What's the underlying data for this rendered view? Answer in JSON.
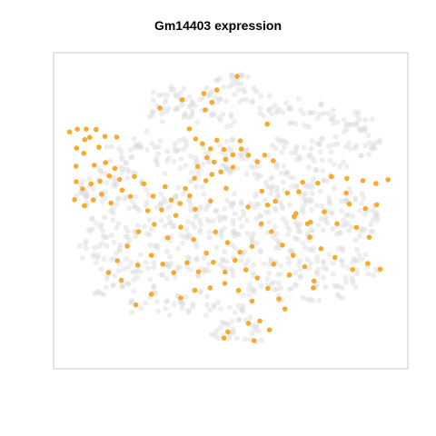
{
  "chart_data": {
    "type": "scatter",
    "title": "Gm14403 expression",
    "xlabel": "",
    "ylabel": "",
    "axes_visible": false,
    "frame": true,
    "xlim": [
      0,
      100
    ],
    "ylim": [
      0,
      100
    ],
    "colors": {
      "background_cells": "#d9d9d9",
      "expressing_cells": "#f5a623",
      "frame": "#c8c8c8"
    },
    "series": [
      {
        "name": "",
        "role": "background",
        "points": [
          [
            52.6,
            92.4
          ],
          [
            47.9,
            91.8
          ],
          [
            50.8,
            90.4
          ],
          [
            53.1,
            87.1
          ],
          [
            44.1,
            86.2
          ],
          [
            46.0,
            85.3
          ],
          [
            33.4,
            87.6
          ],
          [
            38.3,
            86.0
          ],
          [
            30.3,
            85.5
          ],
          [
            36.2,
            84.6
          ],
          [
            41.4,
            82.6
          ],
          [
            32.4,
            82.7
          ],
          [
            29.7,
            80.3
          ],
          [
            39.3,
            79.8
          ],
          [
            45.4,
            81.0
          ],
          [
            48.7,
            79.2
          ],
          [
            58.5,
            86.6
          ],
          [
            62.6,
            83.2
          ],
          [
            60.8,
            81.7
          ],
          [
            67.0,
            83.1
          ],
          [
            69.4,
            79.2
          ],
          [
            73.9,
            81.2
          ],
          [
            77.2,
            80.2
          ],
          [
            80.5,
            76.5
          ],
          [
            83.9,
            79.3
          ],
          [
            85.4,
            75.5
          ],
          [
            87.7,
            77.1
          ],
          [
            90.7,
            71.1
          ],
          [
            88.0,
            69.7
          ],
          [
            84.3,
            68.9
          ],
          [
            77.9,
            72.3
          ],
          [
            74.7,
            70.7
          ],
          [
            80.2,
            65.9
          ],
          [
            73.8,
            65.4
          ],
          [
            69.9,
            67.9
          ],
          [
            66.7,
            69.0
          ],
          [
            63.9,
            72.4
          ],
          [
            63.1,
            66.0
          ],
          [
            76.8,
            61.0
          ],
          [
            72.4,
            59.1
          ],
          [
            69.4,
            56.3
          ],
          [
            65.3,
            61.8
          ],
          [
            59.2,
            59.5
          ],
          [
            62.5,
            56.9
          ],
          [
            57.1,
            64.0
          ],
          [
            54.3,
            67.8
          ],
          [
            51.0,
            70.0
          ],
          [
            49.8,
            65.4
          ],
          [
            48.5,
            62.0
          ],
          [
            44.9,
            67.9
          ],
          [
            41.7,
            64.4
          ],
          [
            39.5,
            59.6
          ],
          [
            38.0,
            64.9
          ],
          [
            35.1,
            71.0
          ],
          [
            33.1,
            67.3
          ],
          [
            30.0,
            63.9
          ],
          [
            27.5,
            70.0
          ],
          [
            24.4,
            72.6
          ],
          [
            22.5,
            68.6
          ],
          [
            21.1,
            63.9
          ],
          [
            19.3,
            61.0
          ],
          [
            17.0,
            68.5
          ],
          [
            13.8,
            63.2
          ],
          [
            10.3,
            58.6
          ],
          [
            7.6,
            55.2
          ],
          [
            10.8,
            52.1
          ],
          [
            13.2,
            56.1
          ],
          [
            16.3,
            51.8
          ],
          [
            18.6,
            55.9
          ],
          [
            22.1,
            51.9
          ],
          [
            25.7,
            56.5
          ],
          [
            28.5,
            52.7
          ],
          [
            31.8,
            48.9
          ],
          [
            33.0,
            55.0
          ],
          [
            37.0,
            52.8
          ],
          [
            40.2,
            48.3
          ],
          [
            43.5,
            52.5
          ],
          [
            46.1,
            48.6
          ],
          [
            49.1,
            53.1
          ],
          [
            52.6,
            49.5
          ],
          [
            55.6,
            53.7
          ],
          [
            58.4,
            49.6
          ],
          [
            60.7,
            55.1
          ],
          [
            64.0,
            50.9
          ],
          [
            66.4,
            47.6
          ],
          [
            70.6,
            50.2
          ],
          [
            73.3,
            54.5
          ],
          [
            76.9,
            50.5
          ],
          [
            80.2,
            55.0
          ],
          [
            83.8,
            50.9
          ],
          [
            86.2,
            55.4
          ],
          [
            88.4,
            50.9
          ],
          [
            90.6,
            46.8
          ],
          [
            87.5,
            43.0
          ],
          [
            84.3,
            46.6
          ],
          [
            81.0,
            42.8
          ],
          [
            77.6,
            46.9
          ],
          [
            73.8,
            43.4
          ],
          [
            70.4,
            39.9
          ],
          [
            67.3,
            43.9
          ],
          [
            63.9,
            40.2
          ],
          [
            60.2,
            44.1
          ],
          [
            56.2,
            40.6
          ],
          [
            53.2,
            44.3
          ],
          [
            49.3,
            41.4
          ],
          [
            45.5,
            45.2
          ],
          [
            42.5,
            41.2
          ],
          [
            38.4,
            44.7
          ],
          [
            35.5,
            40.7
          ],
          [
            31.6,
            44.2
          ],
          [
            28.3,
            40.0
          ],
          [
            25.2,
            44.6
          ],
          [
            21.5,
            40.8
          ],
          [
            18.3,
            44.8
          ],
          [
            14.8,
            41.2
          ],
          [
            11.7,
            45.3
          ],
          [
            8.8,
            41.5
          ],
          [
            10.3,
            37.6
          ],
          [
            13.7,
            33.6
          ],
          [
            16.9,
            37.5
          ],
          [
            20.2,
            33.9
          ],
          [
            23.2,
            30.1
          ],
          [
            26.0,
            34.5
          ],
          [
            29.8,
            30.9
          ],
          [
            33.1,
            35.1
          ],
          [
            36.4,
            31.0
          ],
          [
            39.8,
            34.5
          ],
          [
            43.3,
            31.1
          ],
          [
            46.4,
            35.5
          ],
          [
            50.1,
            31.6
          ],
          [
            53.5,
            35.7
          ],
          [
            56.8,
            31.7
          ],
          [
            60.4,
            36.0
          ],
          [
            63.7,
            32.0
          ],
          [
            67.0,
            35.2
          ],
          [
            70.5,
            31.8
          ],
          [
            73.7,
            35.8
          ],
          [
            77.0,
            32.1
          ],
          [
            80.4,
            35.7
          ],
          [
            83.7,
            31.4
          ],
          [
            86.6,
            36.0
          ],
          [
            89.2,
            32.3
          ],
          [
            84.5,
            27.5
          ],
          [
            80.8,
            24.8
          ],
          [
            76.6,
            27.9
          ],
          [
            72.7,
            24.3
          ],
          [
            68.5,
            27.8
          ],
          [
            64.7,
            24.2
          ],
          [
            61.3,
            27.9
          ],
          [
            57.6,
            24.5
          ],
          [
            53.8,
            21.5
          ],
          [
            50.7,
            17.4
          ],
          [
            47.2,
            13.4
          ],
          [
            44.6,
            18.2
          ],
          [
            41.4,
            22.1
          ],
          [
            37.5,
            18.7
          ],
          [
            34.6,
            22.4
          ],
          [
            31.0,
            19.3
          ],
          [
            27.5,
            23.6
          ],
          [
            23.6,
            20.2
          ],
          [
            20.5,
            24.5
          ],
          [
            17.0,
            28.3
          ],
          [
            14.0,
            24.9
          ],
          [
            54.9,
            14.9
          ],
          [
            57.5,
            10.7
          ],
          [
            51.4,
            9.6
          ],
          [
            48.3,
            12.0
          ]
        ]
      },
      {
        "name": "",
        "role": "expressing",
        "points": [
          [
            51.8,
            92.5
          ],
          [
            46.1,
            88.2
          ],
          [
            42.4,
            87.1
          ],
          [
            36.3,
            85.1
          ],
          [
            44.7,
            84.3
          ],
          [
            42.8,
            81.9
          ],
          [
            30.0,
            82.5
          ],
          [
            60.3,
            77.4
          ],
          [
            38.3,
            75.9
          ],
          [
            40.1,
            72.7
          ],
          [
            42.0,
            71.2
          ],
          [
            44.3,
            69.6
          ],
          [
            46.1,
            72.3
          ],
          [
            48.1,
            69.4
          ],
          [
            43.3,
            66.8
          ],
          [
            45.3,
            65.4
          ],
          [
            48.5,
            66.2
          ],
          [
            50.6,
            67.7
          ],
          [
            53.0,
            69.5
          ],
          [
            55.0,
            67.6
          ],
          [
            57.5,
            65.5
          ],
          [
            59.6,
            67.6
          ],
          [
            62.0,
            65.8
          ],
          [
            52.7,
            72.1
          ],
          [
            50.6,
            63.8
          ],
          [
            47.2,
            62.3
          ],
          [
            44.7,
            61.5
          ],
          [
            40.7,
            64.0
          ],
          [
            43.0,
            59.5
          ],
          [
            4.5,
            74.9
          ],
          [
            6.7,
            75.8
          ],
          [
            9.2,
            75.8
          ],
          [
            10.2,
            73.2
          ],
          [
            12.0,
            75.7
          ],
          [
            8.8,
            72.5
          ],
          [
            12.8,
            70.1
          ],
          [
            6.5,
            69.8
          ],
          [
            8.5,
            68.2
          ],
          [
            14.5,
            73.5
          ],
          [
            17.8,
            73.3
          ],
          [
            6.3,
            64.1
          ],
          [
            11.5,
            64.4
          ],
          [
            14.7,
            65.2
          ],
          [
            17.3,
            63.4
          ],
          [
            6.4,
            59.2
          ],
          [
            8.2,
            56.9
          ],
          [
            10.6,
            58.5
          ],
          [
            13.1,
            59.3
          ],
          [
            15.7,
            61.0
          ],
          [
            18.6,
            59.9
          ],
          [
            5.9,
            53.5
          ],
          [
            8.7,
            51.6
          ],
          [
            11.2,
            53.4
          ],
          [
            13.6,
            55.2
          ],
          [
            16.2,
            52.4
          ],
          [
            19.3,
            56.5
          ],
          [
            21.7,
            54.5
          ],
          [
            22.8,
            60.8
          ],
          [
            25.5,
            58.5
          ],
          [
            28.1,
            54.6
          ],
          [
            31.5,
            57.6
          ],
          [
            33.2,
            53.4
          ],
          [
            37.2,
            57.0
          ],
          [
            39.8,
            60.3
          ],
          [
            38.4,
            54.7
          ],
          [
            35.7,
            52.3
          ],
          [
            26.6,
            50.0
          ],
          [
            30.5,
            50.3
          ],
          [
            34.5,
            48.5
          ],
          [
            40.0,
            50.5
          ],
          [
            44.3,
            53.1
          ],
          [
            48.7,
            57.1
          ],
          [
            54.9,
            51.2
          ],
          [
            58.8,
            56.2
          ],
          [
            60.4,
            51.8
          ],
          [
            62.6,
            53.0
          ],
          [
            66.0,
            55.6
          ],
          [
            70.3,
            59.0
          ],
          [
            74.6,
            58.7
          ],
          [
            78.4,
            60.8
          ],
          [
            82.8,
            60.2
          ],
          [
            87.3,
            59.5
          ],
          [
            91.0,
            58.6
          ],
          [
            94.4,
            59.8
          ],
          [
            82.6,
            55.6
          ],
          [
            83.5,
            52.1
          ],
          [
            88.0,
            50.7
          ],
          [
            91.2,
            51.9
          ],
          [
            68.4,
            49.1
          ],
          [
            72.5,
            46.4
          ],
          [
            76.4,
            49.6
          ],
          [
            80.0,
            45.9
          ],
          [
            85.5,
            44.7
          ],
          [
            89.1,
            41.6
          ],
          [
            72.3,
            41.6
          ],
          [
            75.5,
            38.0
          ],
          [
            79.4,
            35.2
          ],
          [
            84.4,
            31.4
          ],
          [
            88.7,
            33.3
          ],
          [
            92.2,
            31.5
          ],
          [
            58.6,
            45.9
          ],
          [
            61.5,
            43.4
          ],
          [
            64.6,
            39.1
          ],
          [
            67.6,
            35.9
          ],
          [
            70.9,
            32.3
          ],
          [
            73.5,
            27.8
          ],
          [
            66.6,
            29.7
          ],
          [
            62.1,
            33.1
          ],
          [
            56.0,
            38.7
          ],
          [
            52.6,
            36.9
          ],
          [
            49.1,
            39.9
          ],
          [
            45.7,
            43.3
          ],
          [
            43.1,
            36.6
          ],
          [
            39.5,
            40.9
          ],
          [
            35.9,
            44.8
          ],
          [
            32.2,
            41.4
          ],
          [
            28.4,
            45.7
          ],
          [
            24.0,
            43.4
          ],
          [
            20.8,
            38.8
          ],
          [
            18.0,
            34.2
          ],
          [
            15.5,
            30.4
          ],
          [
            19.1,
            28.0
          ],
          [
            23.8,
            32.8
          ],
          [
            27.6,
            35.9
          ],
          [
            30.8,
            33.1
          ],
          [
            33.9,
            30.4
          ],
          [
            37.7,
            33.6
          ],
          [
            40.9,
            30.7
          ],
          [
            45.1,
            33.7
          ],
          [
            48.4,
            30.6
          ],
          [
            51.2,
            34.3
          ],
          [
            54.3,
            31.3
          ],
          [
            57.5,
            28.7
          ],
          [
            60.5,
            25.4
          ],
          [
            63.6,
            22.1
          ],
          [
            56.0,
            21.4
          ],
          [
            52.2,
            24.8
          ],
          [
            48.3,
            27.0
          ],
          [
            44.2,
            25.6
          ],
          [
            39.9,
            24.8
          ],
          [
            35.9,
            22.4
          ],
          [
            27.6,
            23.6
          ],
          [
            23.2,
            20.2
          ],
          [
            58.2,
            15.1
          ],
          [
            55.0,
            14.4
          ],
          [
            60.9,
            12.3
          ],
          [
            48.1,
            9.7
          ],
          [
            49.2,
            11.7
          ],
          [
            56.6,
            8.9
          ],
          [
            71.7,
            45.9
          ],
          [
            73.3,
            25.6
          ],
          [
            65.3,
            18.9
          ],
          [
            67.9,
            48.1
          ],
          [
            69.2,
            56.0
          ]
        ]
      }
    ]
  }
}
